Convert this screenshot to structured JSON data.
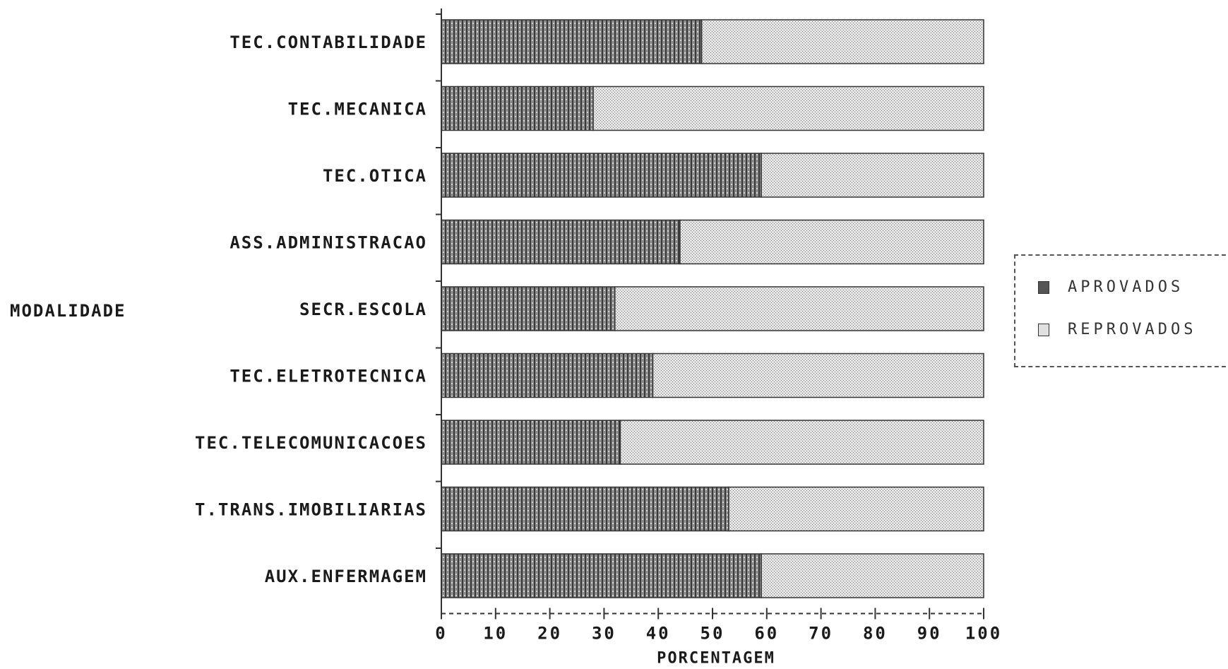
{
  "chart_data": {
    "type": "bar",
    "orientation": "horizontal",
    "stacked": true,
    "ylabel": "MODALIDADE",
    "xlabel": "PORCENTAGEM",
    "xlim": [
      0,
      100
    ],
    "xticks": [
      "0",
      "10",
      "20",
      "30",
      "40",
      "50",
      "60",
      "70",
      "80",
      "90",
      "100"
    ],
    "categories": [
      "TEC.CONTABILIDADE",
      "TEC.MECANICA",
      "TEC.OTICA",
      "ASS.ADMINISTRACAO",
      "SECR.ESCOLA",
      "TEC.ELETROTECNICA",
      "TEC.TELECOMUNICACOES",
      "T.TRANS.IMOBILIARIAS",
      "AUX.ENFERMAGEM"
    ],
    "series": [
      {
        "name": "APROVADOS",
        "values": [
          48,
          28,
          59,
          44,
          32,
          39,
          33,
          53,
          59
        ],
        "color": "#6e6e6e"
      },
      {
        "name": "REPROVADOS",
        "values": [
          52,
          72,
          41,
          56,
          68,
          61,
          67,
          47,
          41
        ],
        "color": "#c9c9c9"
      }
    ],
    "legend_position": "right",
    "grid": false
  }
}
